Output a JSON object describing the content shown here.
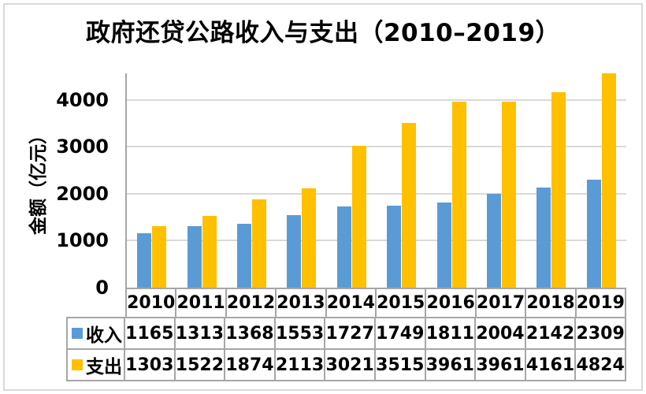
{
  "title": "政府还贷公路收入与支出（2010–2019）",
  "y_axis": {
    "label": "金额（亿元）",
    "ticks": [
      0,
      1000,
      2000,
      3000,
      4000
    ],
    "display_max": 4570
  },
  "colors": {
    "income": "#5B9BD5",
    "expense": "#FFC000",
    "gridline": "#D9D9D9",
    "table_border": "#A6A6A6",
    "frame_border": "#D9D9D9",
    "text": "#000000"
  },
  "chart_data": {
    "type": "bar",
    "title": "政府还贷公路收入与支出（2010–2019）",
    "xlabel": "",
    "ylabel": "金额（亿元）",
    "categories": [
      "2010",
      "2011",
      "2012",
      "2013",
      "2014",
      "2015",
      "2016",
      "2017",
      "2018",
      "2019"
    ],
    "series": [
      {
        "name": "收入",
        "color": "#5B9BD5",
        "values": [
          1165,
          1313,
          1368,
          1553,
          1727,
          1749,
          1811,
          2004,
          2142,
          2309
        ]
      },
      {
        "name": "支出",
        "color": "#FFC000",
        "values": [
          1303,
          1522,
          1874,
          2113,
          3021,
          3515,
          3961,
          3961,
          4161,
          4824
        ]
      }
    ],
    "ylim": [
      0,
      4570
    ],
    "yticks": [
      0,
      1000,
      2000,
      3000,
      4000
    ],
    "grid": true,
    "legend_position": "data-table-below-axis",
    "note_clipping": "2019 支出 bar (4824) is clipped at the plot top"
  }
}
